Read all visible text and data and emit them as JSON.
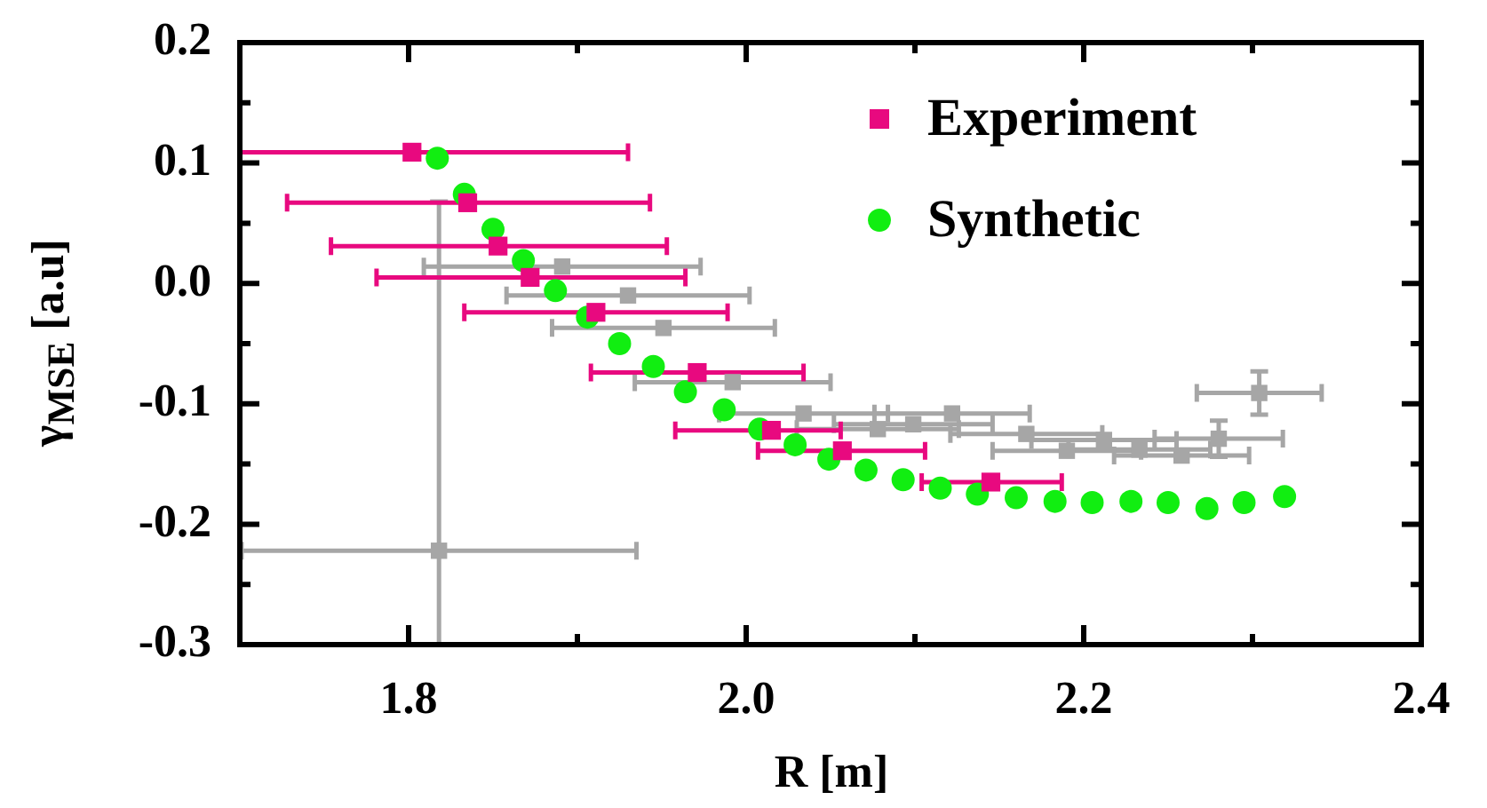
{
  "chart_data": {
    "type": "scatter",
    "xlabel": "R [m]",
    "ylabel": "γ$_{MSE}$ [a.u]",
    "xlim": [
      1.7,
      2.4
    ],
    "ylim": [
      -0.3,
      0.2
    ],
    "xticks": [
      {
        "value": 1.7,
        "label": null
      },
      1.8,
      {
        "value": 1.9,
        "label": null
      },
      {
        "value": 2.0,
        "label": "2.0"
      },
      {
        "value": 2.1,
        "label": null
      },
      2.2,
      {
        "value": 2.3,
        "label": null
      },
      2.4
    ],
    "yticks": [
      -0.3,
      {
        "value": -0.25,
        "label": null
      },
      -0.2,
      {
        "value": -0.15,
        "label": null
      },
      -0.1,
      {
        "value": -0.05,
        "label": null
      },
      {
        "value": 0,
        "label": "0.0"
      },
      {
        "value": 0.05,
        "label": null
      },
      0.1,
      {
        "value": 0.15,
        "label": null
      },
      0.2
    ],
    "grid": false,
    "legend": "top right",
    "series": [
      {
        "color": "#a6a6a6",
        "marker": "square",
        "x": [
          1.818,
          1.891,
          1.93,
          1.951,
          1.992,
          2.034,
          2.078,
          2.099,
          2.122,
          2.166,
          2.19,
          2.212,
          2.233,
          2.258,
          2.28,
          2.304
        ],
        "values": [
          -0.222,
          0.014,
          -0.01,
          -0.037,
          -0.082,
          -0.108,
          -0.121,
          -0.117,
          -0.108,
          -0.125,
          -0.139,
          -0.13,
          -0.138,
          -0.143,
          -0.129,
          -0.091
        ],
        "xerrors": [
          0.117,
          0.082,
          0.072,
          0.066,
          0.058,
          0.05,
          0.048,
          0.047,
          0.046,
          0.045,
          0.044,
          0.043,
          0.042,
          0.04,
          0.038,
          0.037
        ],
        "errors": [
          [
            -0.3,
            0.068
          ],
          null,
          null,
          null,
          null,
          null,
          null,
          null,
          null,
          null,
          null,
          null,
          null,
          null,
          0.015,
          0.018
        ]
      },
      {
        "name": "Experiment",
        "color": "#e8097f",
        "marker": "square",
        "x": [
          1.802,
          1.835,
          1.853,
          1.872,
          1.911,
          1.971,
          2.015,
          2.057,
          2.145
        ],
        "values": [
          0.109,
          0.067,
          0.031,
          0.005,
          -0.024,
          -0.074,
          -0.122,
          -0.139,
          -0.165
        ],
        "xerrors": [
          [
            1.7,
            1.93
          ],
          [
            1.728,
            1.943
          ],
          [
            1.754,
            1.953
          ],
          [
            1.781,
            1.964
          ],
          [
            1.833,
            1.989
          ],
          [
            1.908,
            2.034
          ],
          [
            1.958,
            2.056
          ],
          [
            2.007,
            2.106
          ],
          [
            2.104,
            2.187
          ]
        ]
      },
      {
        "name": "Synthetic",
        "color": "#11ee11",
        "marker": "circle",
        "x": [
          1.817,
          1.833,
          1.85,
          1.868,
          1.887,
          1.906,
          1.925,
          1.945,
          1.964,
          1.987,
          2.008,
          2.029,
          2.049,
          2.071,
          2.093,
          2.115,
          2.137,
          2.16,
          2.183,
          2.205,
          2.228,
          2.25,
          2.273,
          2.295,
          2.319
        ],
        "values": [
          0.104,
          0.074,
          0.045,
          0.019,
          -0.006,
          -0.028,
          -0.05,
          -0.069,
          -0.09,
          -0.105,
          -0.121,
          -0.134,
          -0.146,
          -0.155,
          -0.163,
          -0.17,
          -0.175,
          -0.178,
          -0.181,
          -0.182,
          -0.181,
          -0.182,
          -0.187,
          -0.182,
          -0.177
        ]
      }
    ]
  }
}
